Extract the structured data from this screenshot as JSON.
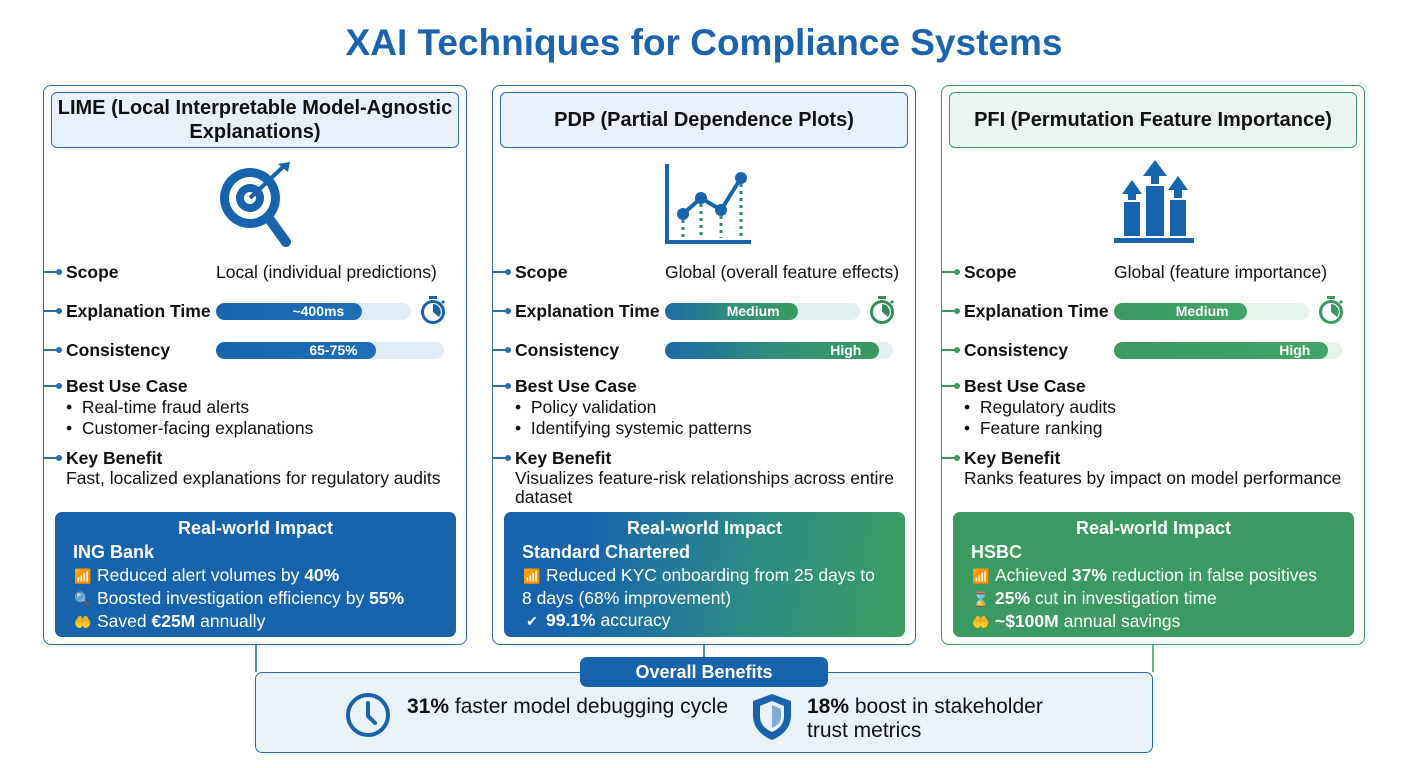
{
  "title": "XAI Techniques for Compliance Systems",
  "colors": {
    "blue": "#1764ad",
    "teal": "#2a8a86",
    "green": "#3a9a60"
  },
  "panels": [
    {
      "name": "lime",
      "title": "LIME (Local Interpretable Model-Agnostic Explanations)",
      "icon": "target-magnifier-icon",
      "scope_label": "Scope",
      "scope": "Local (individual predictions)",
      "time_label": "Explanation Time",
      "time": "~400ms",
      "time_fill": 0.75,
      "cons_label": "Consistency",
      "cons": "65-75%",
      "cons_fill": 0.7,
      "use_label": "Best Use Case",
      "uses": [
        "Real-time fraud alerts",
        "Customer-facing explanations"
      ],
      "benefit_label": "Key Benefit",
      "benefit": "Fast, localized explanations for regulatory audits",
      "impact_title": "Real-world Impact",
      "company": "ING Bank",
      "impacts": [
        {
          "icon": "chart-growth-icon",
          "parts": [
            [
              "Reduced alert volumes by ",
              0
            ],
            [
              "40%",
              1
            ]
          ]
        },
        {
          "icon": "search-money-icon",
          "parts": [
            [
              "Boosted investigation efficiency by ",
              0
            ],
            [
              "55%",
              1
            ]
          ]
        },
        {
          "icon": "hand-coin-icon",
          "parts": [
            [
              "Saved ",
              0
            ],
            [
              "€25M",
              1
            ],
            [
              " annually",
              0
            ]
          ]
        }
      ]
    },
    {
      "name": "pdp",
      "title": "PDP (Partial Dependence Plots)",
      "icon": "line-chart-icon",
      "scope_label": "Scope",
      "scope": "Global (overall feature effects)",
      "time_label": "Explanation Time",
      "time": "Medium",
      "time_fill": 0.68,
      "cons_label": "Consistency",
      "cons": "High",
      "cons_fill": 0.94,
      "use_label": "Best Use Case",
      "uses": [
        "Policy validation",
        "Identifying systemic patterns"
      ],
      "benefit_label": "Key Benefit",
      "benefit": "Visualizes feature-risk relationships across entire dataset",
      "impact_title": "Real-world Impact",
      "company": "Standard Chartered",
      "impacts": [
        {
          "icon": "chart-growth-icon",
          "parts": [
            [
              "Reduced KYC onboarding from 25 days to 8 days (68% improvement)",
              0
            ]
          ]
        },
        {
          "icon": "check-circle-icon",
          "parts": [
            [
              "99.1%",
              1
            ],
            [
              " accuracy",
              0
            ]
          ]
        }
      ]
    },
    {
      "name": "pfi",
      "title": "PFI (Permutation Feature Importance)",
      "icon": "bar-arrows-icon",
      "scope_label": "Scope",
      "scope": "Global (feature importance)",
      "time_label": "Explanation Time",
      "time": "Medium",
      "time_fill": 0.68,
      "cons_label": "Consistency",
      "cons": "High",
      "cons_fill": 0.94,
      "use_label": "Best Use Case",
      "uses": [
        "Regulatory audits",
        "Feature ranking"
      ],
      "benefit_label": "Key Benefit",
      "benefit": "Ranks features by impact on model performance",
      "impact_title": "Real-world Impact",
      "company": "HSBC",
      "impacts": [
        {
          "icon": "chart-growth-icon",
          "parts": [
            [
              "Achieved ",
              0
            ],
            [
              "37%",
              1
            ],
            [
              " reduction in false positives",
              0
            ]
          ]
        },
        {
          "icon": "hourglass-icon",
          "parts": [
            [
              "25%",
              1
            ],
            [
              " cut in investigation time",
              0
            ]
          ]
        },
        {
          "icon": "hand-coin-icon",
          "parts": [
            [
              "~$100M",
              1
            ],
            [
              " annual savings",
              0
            ]
          ]
        }
      ]
    }
  ],
  "overall": {
    "label": "Overall Benefits",
    "items": [
      {
        "icon": "clock-icon",
        "bold": "31%",
        "text": " faster model debugging cycle"
      },
      {
        "icon": "shield-icon",
        "bold": "18%",
        "text": " boost in stakeholder trust metrics"
      }
    ]
  }
}
